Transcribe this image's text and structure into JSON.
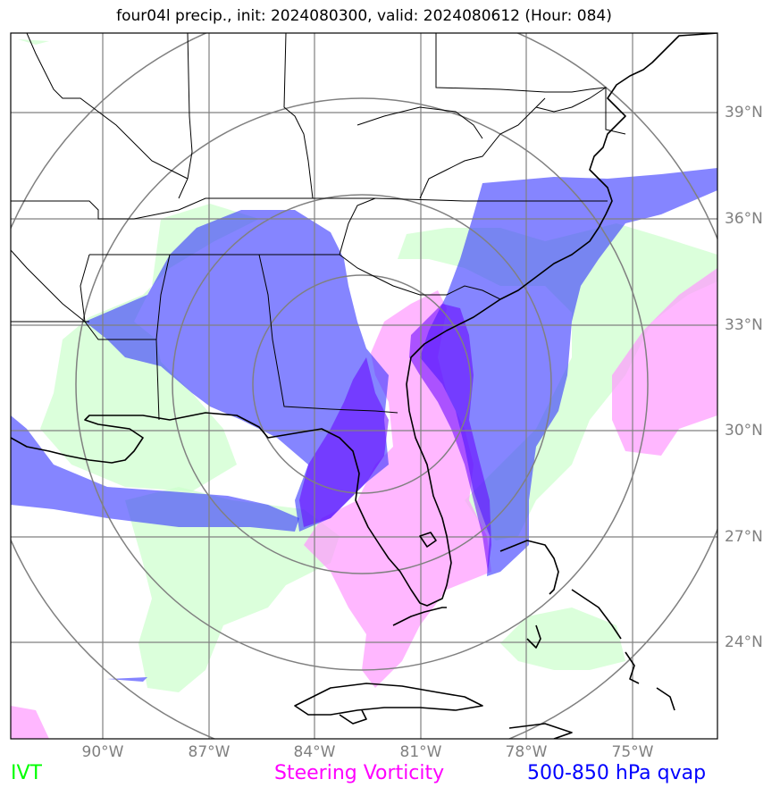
{
  "title": "four04l precip., init: 2024080300, valid: 2024080612 (Hour: 084)",
  "lat_labels": [
    "39°N",
    "36°N",
    "33°N",
    "30°N",
    "27°N",
    "24°N"
  ],
  "lon_labels": [
    "90°W",
    "87°W",
    "84°W",
    "81°W",
    "78°W",
    "75°W"
  ],
  "legend": [
    {
      "label": "IVT",
      "color": "#00ff00"
    },
    {
      "label": "Steering Vorticity",
      "color": "#ff00ff"
    },
    {
      "label": "500-850 hPa qvap",
      "color": "#0000ff"
    }
  ],
  "fields": {
    "ivt_color": "#ccffcc",
    "vorticity_color": "#ff99ff",
    "qvap_color": "#3333ff",
    "qvap_core_color": "#6600ff"
  },
  "grid_color": "#808080"
}
